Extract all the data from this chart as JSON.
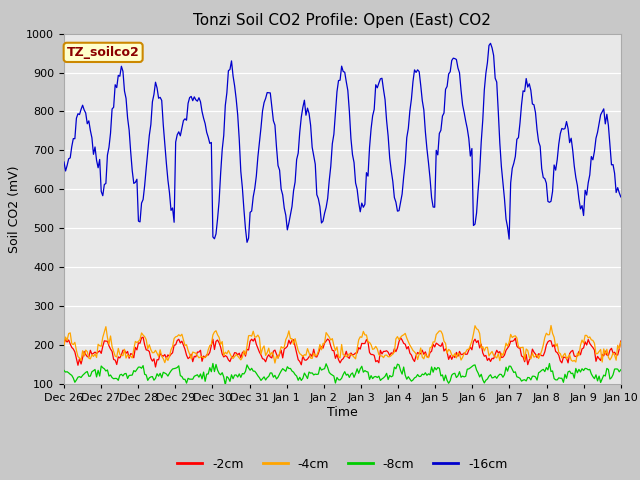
{
  "title": "Tonzi Soil CO2 Profile: Open (East) CO2",
  "ylabel": "Soil CO2 (mV)",
  "xlabel": "Time",
  "legend_label": "TZ_soilco2",
  "ylim": [
    100,
    1000
  ],
  "yticks": [
    100,
    200,
    300,
    400,
    500,
    600,
    700,
    800,
    900,
    1000
  ],
  "series_labels": [
    "-2cm",
    "-4cm",
    "-8cm",
    "-16cm"
  ],
  "series_colors": [
    "#ff0000",
    "#ffa500",
    "#00cc00",
    "#0000cc"
  ],
  "fig_bg_color": "#c8c8c8",
  "plot_bg_upper": "#e8e8e8",
  "plot_bg_lower": "#dcdcdc",
  "title_fontsize": 11,
  "axis_fontsize": 9,
  "tick_fontsize": 8,
  "legend_fontsize": 9,
  "tick_labels": [
    "Dec 26",
    "Dec 27",
    "Dec 28",
    "Dec 29",
    "Dec 30",
    "Dec 31",
    "Jan 1",
    "Jan 2",
    "Jan 3",
    "Jan 4",
    "Jan 5",
    "Jan 6",
    "Jan 7",
    "Jan 8",
    "Jan 9",
    "Jan 10"
  ],
  "n_days": 15,
  "n_points": 360
}
